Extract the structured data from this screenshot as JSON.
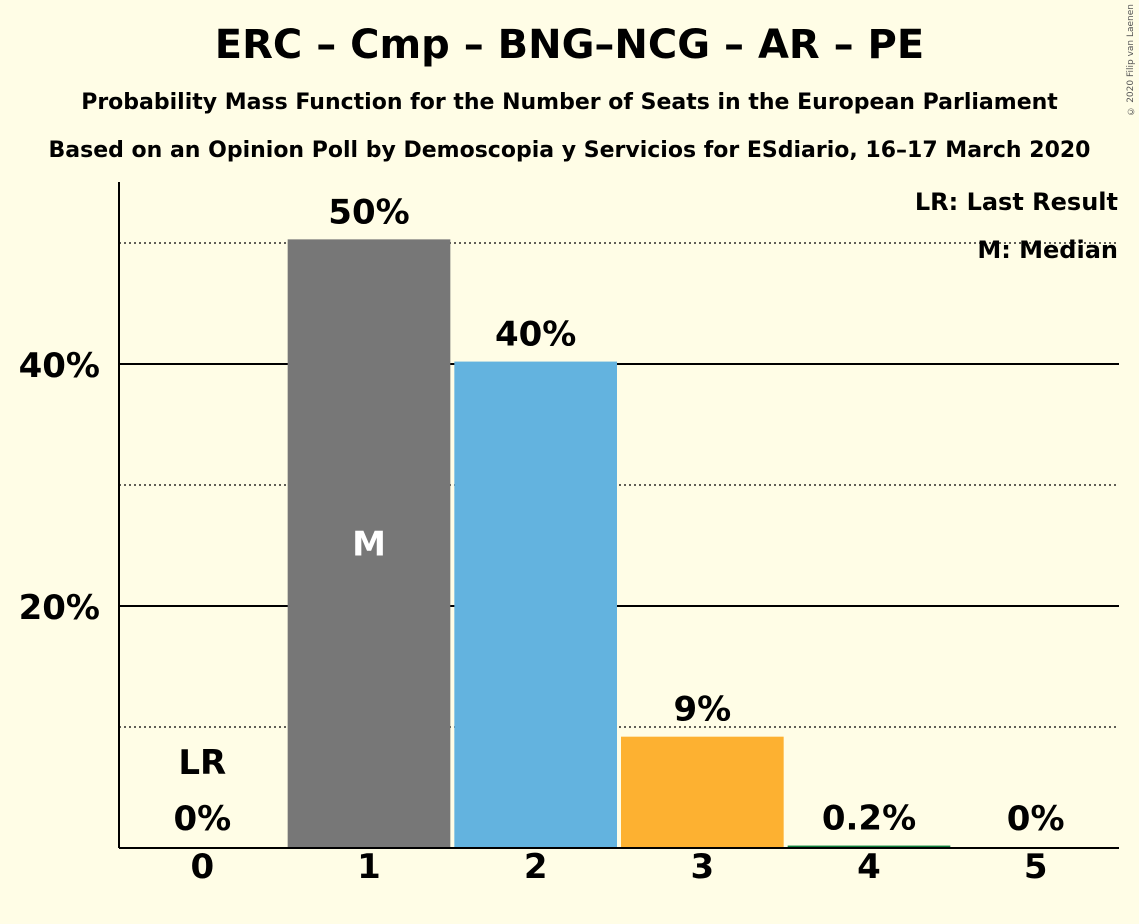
{
  "title": "ERC – Cmp – BNG–NCG – AR – PE",
  "subtitle": "Probability Mass Function for the Number of Seats in the European Parliament",
  "subtitle2": "Based on an Opinion Poll by Demoscopia y Servicios for ESdiario, 16–17 March 2020",
  "copyright": "© 2020 Filip van Laenen",
  "legend": {
    "lr": "LR: Last Result",
    "median": "M: Median"
  },
  "chart_data": {
    "type": "bar",
    "categories": [
      "0",
      "1",
      "2",
      "3",
      "4",
      "5"
    ],
    "values": [
      0,
      50.3,
      40.2,
      9.2,
      0.2,
      0
    ],
    "value_labels": [
      "0%",
      "50%",
      "40%",
      "9%",
      "0.2%",
      "0%"
    ],
    "colors": [
      "#777777",
      "#777777",
      "#63B3DF",
      "#FDB131",
      "#0E7F3C",
      "#777777"
    ],
    "ylim": [
      0,
      55
    ],
    "y_ticks_major": [
      20,
      40
    ],
    "y_tick_labels": [
      "20%",
      "40%"
    ],
    "y_ticks_minor": [
      10,
      30,
      50
    ],
    "last_result_index": 0,
    "last_result_label": "LR",
    "median_index": 1,
    "median_label": "M",
    "legend_position": "top-right"
  }
}
